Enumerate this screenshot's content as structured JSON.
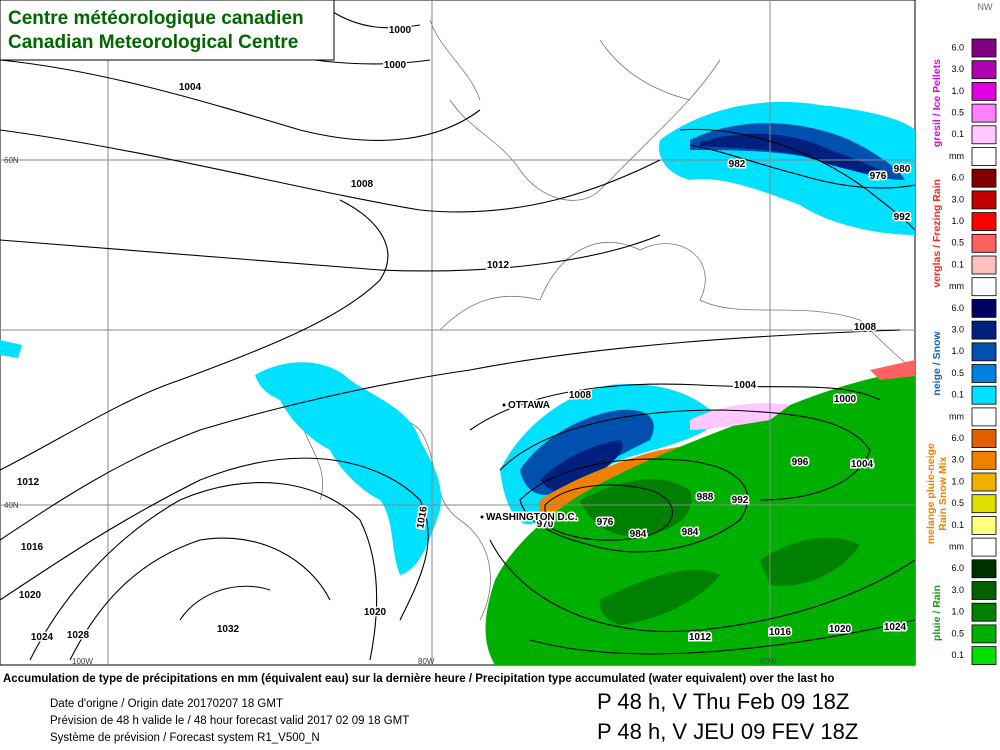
{
  "header": {
    "title_fr": "Centre météorologique canadien",
    "title_en": "Canadian Meteorological Centre"
  },
  "map": {
    "isobar_labels": [
      "1000",
      "1000",
      "1004",
      "1008",
      "1012",
      "1008",
      "1004",
      "1008",
      "1000",
      "996",
      "1004",
      "992",
      "988",
      "1016",
      "1012",
      "1016",
      "1020",
      "1024",
      "1028",
      "1032",
      "1020",
      "1012",
      "1016",
      "1020",
      "1024",
      "982",
      "976",
      "980",
      "992",
      "970",
      "976",
      "984",
      "984"
    ],
    "places": [
      "OTTAWA",
      "WASHINGTON D.C."
    ],
    "grid_labels": [
      "60N",
      "40N",
      "100W",
      "80W",
      "60W"
    ]
  },
  "legend": {
    "corner_label": "NW",
    "groups": [
      {
        "lines": [
          "gresil / Ice Pellets"
        ],
        "color": "#e000e0",
        "items": [
          {
            "label": "6.0",
            "color": "#800080"
          },
          {
            "label": "3.0",
            "color": "#b000b0"
          },
          {
            "label": "1.0",
            "color": "#e000e0"
          },
          {
            "label": "0.5",
            "color": "#ff80ff"
          },
          {
            "label": "0.1",
            "color": "#ffc8ff"
          },
          {
            "label": "mm",
            "color": "#ffffff"
          }
        ]
      },
      {
        "lines": [
          "verglas / Frezing Rain"
        ],
        "color": "#ff2020",
        "items": [
          {
            "label": "6.0",
            "color": "#800000"
          },
          {
            "label": "3.0",
            "color": "#c00000"
          },
          {
            "label": "1.0",
            "color": "#ff0000"
          },
          {
            "label": "0.5",
            "color": "#ff6060"
          },
          {
            "label": "0.1",
            "color": "#ffc0c0"
          },
          {
            "label": "mm",
            "color": "#ffffff"
          }
        ]
      },
      {
        "lines": [
          "neige / Snow"
        ],
        "color": "#1060c0",
        "items": [
          {
            "label": "6.0",
            "color": "#000060"
          },
          {
            "label": "3.0",
            "color": "#002080"
          },
          {
            "label": "1.0",
            "color": "#0050b0"
          },
          {
            "label": "0.5",
            "color": "#0080e0"
          },
          {
            "label": "0.1",
            "color": "#00e0ff"
          },
          {
            "label": "mm",
            "color": "#ffffff"
          }
        ]
      },
      {
        "lines": [
          "melange pluie-neige",
          "Rain Snow Mix"
        ],
        "color": "#f08000",
        "items": [
          {
            "label": "6.0",
            "color": "#e06000"
          },
          {
            "label": "3.0",
            "color": "#f08000"
          },
          {
            "label": "1.0",
            "color": "#f0b000"
          },
          {
            "label": "0.5",
            "color": "#e0e000"
          },
          {
            "label": "0.1",
            "color": "#ffff80"
          },
          {
            "label": "mm",
            "color": "#ffffff"
          }
        ]
      },
      {
        "lines": [
          "pluie / Rain"
        ],
        "color": "#10a010",
        "items": [
          {
            "label": "6.0",
            "color": "#003000"
          },
          {
            "label": "3.0",
            "color": "#006000"
          },
          {
            "label": "1.0",
            "color": "#008000"
          },
          {
            "label": "0.5",
            "color": "#00b000"
          },
          {
            "label": "0.1",
            "color": "#00e000"
          }
        ]
      }
    ]
  },
  "footer": {
    "description": "Accumulation de type de précipitations en mm (équivalent eau) sur la dernière heure / Precipitation type accumulated (water equivalent) over the last ho",
    "origin": "Date d'origne / Origin date 20170207 18 GMT",
    "valid": "Prévision de 48 h valide le / 48 hour forecast valid 2017 02 09 18 GMT",
    "system": "Système de prévision / Forecast system R1_V500_N",
    "period_en": "P 48 h, V Thu Feb 09 18Z",
    "period_fr": "P 48 h, V JEU 09 FEV 18Z"
  }
}
